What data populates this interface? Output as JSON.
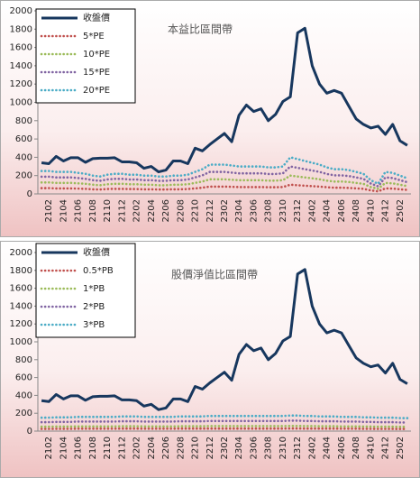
{
  "chart_data": [
    {
      "type": "line",
      "title": "本益比區間帶",
      "categories": [
        null,
        "2102",
        null,
        "2104",
        null,
        "2106",
        null,
        "2108",
        null,
        "2110",
        null,
        "2112",
        null,
        "2202",
        null,
        "2204",
        null,
        "2206",
        null,
        "2208",
        null,
        "2210",
        null,
        "2212",
        null,
        "2302",
        null,
        "2304",
        null,
        "2306",
        null,
        "2308",
        null,
        "2310",
        null,
        "2312",
        null,
        "2402",
        null,
        "2404",
        null,
        "2406",
        null,
        "2408",
        null,
        "2410",
        null,
        "2412",
        null,
        "2502",
        null
      ],
      "ylim": [
        0,
        2000
      ],
      "yticks": [
        0,
        200,
        400,
        600,
        800,
        1000,
        1200,
        1400,
        1600,
        1800,
        2000
      ],
      "grid": false,
      "legend": "upper left",
      "series": [
        {
          "name": "收盤價",
          "color": "#17375e",
          "values": [
            340,
            330,
            410,
            360,
            395,
            395,
            345,
            385,
            390,
            390,
            395,
            350,
            350,
            340,
            280,
            300,
            240,
            260,
            360,
            360,
            330,
            500,
            470,
            540,
            600,
            660,
            570,
            860,
            970,
            900,
            930,
            800,
            870,
            1010,
            1060,
            1760,
            1810,
            1400,
            1200,
            1100,
            1130,
            1100,
            960,
            820,
            760,
            720,
            740,
            650,
            760,
            580,
            530
          ]
        },
        {
          "name": "5*PE",
          "color": "#c0504d",
          "values": [
            63,
            63,
            60,
            60,
            60,
            58,
            55,
            50,
            48,
            53,
            55,
            55,
            53,
            53,
            50,
            50,
            48,
            48,
            50,
            50,
            53,
            60,
            68,
            80,
            80,
            80,
            78,
            75,
            75,
            75,
            75,
            73,
            73,
            75,
            100,
            95,
            90,
            85,
            80,
            73,
            68,
            68,
            65,
            60,
            55,
            38,
            28,
            60,
            58,
            50,
            43
          ]
        },
        {
          "name": "10*PE",
          "color": "#9bbb59",
          "values": [
            125,
            125,
            120,
            120,
            120,
            115,
            110,
            100,
            95,
            105,
            110,
            110,
            105,
            105,
            100,
            100,
            95,
            95,
            100,
            100,
            105,
            120,
            135,
            160,
            160,
            160,
            155,
            150,
            150,
            150,
            150,
            145,
            145,
            150,
            200,
            190,
            180,
            170,
            160,
            145,
            135,
            135,
            130,
            120,
            110,
            75,
            55,
            120,
            115,
            100,
            85
          ]
        },
        {
          "name": "15*PE",
          "color": "#8064a2",
          "values": [
            188,
            188,
            180,
            180,
            180,
            173,
            165,
            150,
            143,
            158,
            165,
            165,
            158,
            158,
            150,
            150,
            143,
            143,
            150,
            150,
            158,
            180,
            203,
            240,
            240,
            240,
            233,
            225,
            225,
            225,
            225,
            218,
            218,
            225,
            300,
            285,
            270,
            255,
            240,
            218,
            203,
            203,
            195,
            180,
            165,
            113,
            83,
            180,
            173,
            150,
            128
          ]
        },
        {
          "name": "20*PE",
          "color": "#4bacc6",
          "values": [
            250,
            250,
            240,
            240,
            240,
            230,
            220,
            200,
            190,
            210,
            220,
            220,
            210,
            210,
            200,
            200,
            190,
            190,
            200,
            200,
            210,
            240,
            270,
            320,
            320,
            320,
            310,
            300,
            300,
            300,
            300,
            290,
            290,
            300,
            400,
            380,
            360,
            340,
            320,
            290,
            270,
            270,
            260,
            240,
            220,
            150,
            110,
            240,
            230,
            200,
            170
          ]
        }
      ]
    },
    {
      "type": "line",
      "title": "股價淨值比區間帶",
      "categories": [
        null,
        "2102",
        null,
        "2104",
        null,
        "2106",
        null,
        "2108",
        null,
        "2110",
        null,
        "2112",
        null,
        "2202",
        null,
        "2204",
        null,
        "2206",
        null,
        "2208",
        null,
        "2210",
        null,
        "2212",
        null,
        "2302",
        null,
        "2304",
        null,
        "2306",
        null,
        "2308",
        null,
        "2310",
        null,
        "2312",
        null,
        "2402",
        null,
        "2404",
        null,
        "2406",
        null,
        "2408",
        null,
        "2410",
        null,
        "2412",
        null,
        "2502",
        null
      ],
      "ylim": [
        0,
        2000
      ],
      "yticks": [
        0,
        200,
        400,
        600,
        800,
        1000,
        1200,
        1400,
        1600,
        1800,
        2000
      ],
      "grid": false,
      "legend": "upper left",
      "series": [
        {
          "name": "收盤價",
          "color": "#17375e",
          "values": [
            340,
            330,
            410,
            360,
            395,
            395,
            345,
            385,
            390,
            390,
            395,
            350,
            350,
            340,
            280,
            300,
            240,
            260,
            360,
            360,
            330,
            500,
            470,
            540,
            600,
            660,
            570,
            860,
            970,
            900,
            930,
            800,
            870,
            1010,
            1060,
            1760,
            1810,
            1400,
            1200,
            1100,
            1130,
            1100,
            960,
            820,
            760,
            720,
            740,
            650,
            760,
            580,
            530
          ]
        },
        {
          "name": "0.5*PB",
          "color": "#c0504d",
          "values": [
            25,
            25,
            26,
            26,
            26,
            27,
            27,
            27,
            27,
            27,
            27,
            28,
            28,
            28,
            27,
            27,
            27,
            27,
            27,
            28,
            28,
            28,
            28,
            28,
            28,
            28,
            28,
            28,
            28,
            28,
            28,
            28,
            28,
            28,
            29,
            29,
            28,
            28,
            28,
            28,
            28,
            27,
            27,
            27,
            26,
            26,
            25,
            25,
            25,
            24,
            24
          ]
        },
        {
          "name": "1*PB",
          "color": "#9bbb59",
          "values": [
            50,
            50,
            52,
            52,
            52,
            53,
            53,
            53,
            53,
            53,
            53,
            55,
            55,
            55,
            53,
            53,
            53,
            53,
            53,
            55,
            55,
            55,
            55,
            57,
            57,
            57,
            57,
            57,
            57,
            57,
            57,
            57,
            57,
            57,
            58,
            58,
            57,
            57,
            55,
            55,
            55,
            53,
            53,
            53,
            52,
            52,
            50,
            50,
            50,
            48,
            48
          ]
        },
        {
          "name": "2*PB",
          "color": "#8064a2",
          "values": [
            100,
            100,
            103,
            103,
            103,
            107,
            107,
            107,
            107,
            107,
            107,
            110,
            110,
            110,
            107,
            107,
            107,
            107,
            107,
            110,
            110,
            110,
            110,
            113,
            113,
            113,
            113,
            113,
            113,
            113,
            113,
            113,
            113,
            113,
            117,
            117,
            113,
            113,
            110,
            110,
            110,
            107,
            107,
            107,
            103,
            103,
            100,
            100,
            100,
            97,
            97
          ]
        },
        {
          "name": "3*PB",
          "color": "#4bacc6",
          "values": [
            150,
            150,
            155,
            155,
            155,
            160,
            160,
            160,
            160,
            160,
            160,
            165,
            165,
            165,
            160,
            160,
            160,
            160,
            160,
            165,
            165,
            165,
            165,
            170,
            170,
            170,
            170,
            170,
            170,
            170,
            170,
            170,
            170,
            170,
            175,
            175,
            170,
            170,
            165,
            165,
            165,
            160,
            160,
            160,
            155,
            155,
            150,
            150,
            150,
            145,
            145
          ]
        }
      ]
    }
  ]
}
